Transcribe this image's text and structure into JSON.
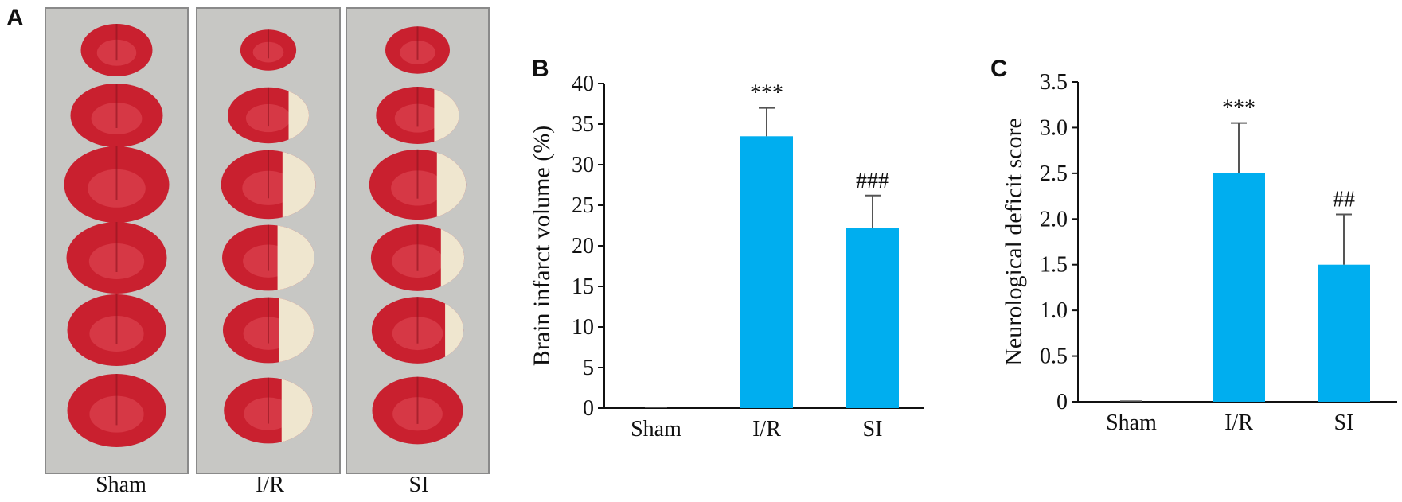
{
  "panels": {
    "a": {
      "letter": "A",
      "groups": [
        "Sham",
        "I/R",
        "SI"
      ],
      "slice_colors": {
        "healthy": "#c9202f",
        "healthy_light": "#e04a55",
        "infarct": "#efe6cf",
        "background": "#c7c7c4",
        "frame": "#8a8a8a"
      },
      "infarct_fraction": [
        [
          0,
          0,
          0,
          0,
          0,
          0
        ],
        [
          0,
          0.25,
          0.35,
          0.4,
          0.38,
          0.35
        ],
        [
          0,
          0.3,
          0.3,
          0.25,
          0.2,
          0
        ]
      ]
    },
    "b": {
      "letter": "B"
    },
    "c": {
      "letter": "C"
    }
  },
  "chart_data": [
    {
      "type": "bar",
      "categories": [
        "Sham",
        "I/R",
        "SI"
      ],
      "values": [
        0,
        33.5,
        22.2
      ],
      "errors": [
        0,
        3.5,
        4.0
      ],
      "significance": [
        "",
        "***",
        "###"
      ],
      "ylabel": "Brain infarct volume (%)",
      "ylim": [
        0,
        40
      ],
      "yticks": [
        "0",
        "5",
        "10",
        "15",
        "20",
        "25",
        "30",
        "35",
        "40"
      ],
      "bar_color": "#00aeef",
      "grid": false
    },
    {
      "type": "bar",
      "categories": [
        "Sham",
        "I/R",
        "SI"
      ],
      "values": [
        0,
        2.5,
        1.5
      ],
      "errors": [
        0,
        0.55,
        0.55
      ],
      "significance": [
        "",
        "***",
        "##"
      ],
      "ylabel": "Neurological deficit score",
      "ylim": [
        0,
        3.5
      ],
      "yticks": [
        "0",
        "0.5",
        "1.0",
        "1.5",
        "2.0",
        "2.5",
        "3.0",
        "3.5"
      ],
      "bar_color": "#00aeef",
      "grid": false
    }
  ]
}
